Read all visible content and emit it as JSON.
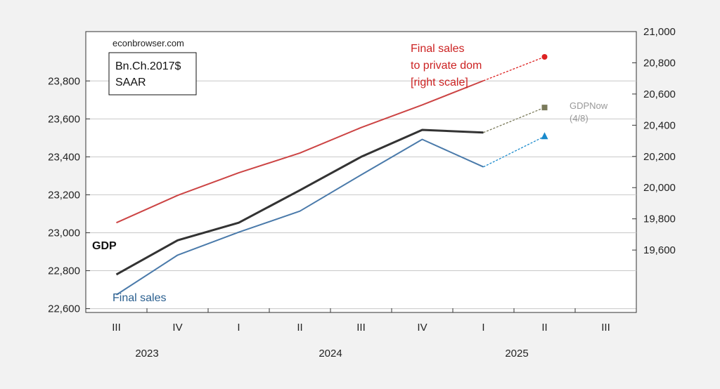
{
  "chart_data": {
    "type": "line",
    "source": "econbrowser.com",
    "units_line1": "Bn.Ch.2017$",
    "units_line2": "SAAR",
    "x_ticks": [
      "III",
      "IV",
      "I",
      "II",
      "III",
      "IV",
      "I",
      "II",
      "III"
    ],
    "years": [
      "2023",
      "2024",
      "2025"
    ],
    "left_axis": {
      "ticks": [
        "22,600",
        "22,800",
        "23,000",
        "23,200",
        "23,400",
        "23,600",
        "23,800"
      ],
      "ylim": [
        22580,
        24060
      ]
    },
    "right_axis": {
      "ticks": [
        "19,600",
        "19,800",
        "20,000",
        "20,200",
        "20,400",
        "20,600",
        "20,800",
        "21,000"
      ],
      "ylim": [
        19200,
        21000
      ]
    },
    "grid": true,
    "series": [
      {
        "name": "GDP",
        "axis": "left",
        "color": "#333333",
        "x": [
          "2023Q3",
          "2023Q4",
          "2024Q1",
          "2024Q2",
          "2024Q3",
          "2024Q4",
          "2025Q1"
        ],
        "values": [
          22780,
          22960,
          23053,
          23224,
          23400,
          23542,
          23528
        ],
        "nowcast": {
          "x": "2025Q2",
          "value": 23660,
          "color": "#7a7a5a",
          "marker": "square"
        }
      },
      {
        "name": "Final sales",
        "axis": "left",
        "color": "#4a7aaa",
        "x": [
          "2023Q3",
          "2023Q4",
          "2024Q1",
          "2024Q2",
          "2024Q3",
          "2024Q4",
          "2025Q1"
        ],
        "values": [
          22673,
          22882,
          23003,
          23114,
          23305,
          23492,
          23347
        ],
        "nowcast": {
          "x": "2025Q2",
          "value": 23508,
          "color": "#1a8acc",
          "marker": "triangle"
        }
      },
      {
        "name": "Final sales to private dom [right scale]",
        "axis": "right",
        "color": "#cc4444",
        "x": [
          "2023Q3",
          "2023Q4",
          "2024Q1",
          "2024Q2",
          "2024Q3",
          "2024Q4",
          "2025Q1"
        ],
        "values": [
          19775,
          19950,
          20095,
          20222,
          20385,
          20530,
          20685
        ],
        "nowcast": {
          "x": "2025Q2",
          "value": 20838,
          "color": "#dd2222",
          "marker": "circle"
        }
      }
    ],
    "annotations": {
      "gdp": "GDP",
      "final_sales": "Final sales",
      "fspd_line1": "Final sales",
      "fspd_line2": "to private dom",
      "fspd_line3": "[right scale]",
      "gdpnow_line1": "GDPNow",
      "gdpnow_line2": "(4/8)"
    }
  }
}
